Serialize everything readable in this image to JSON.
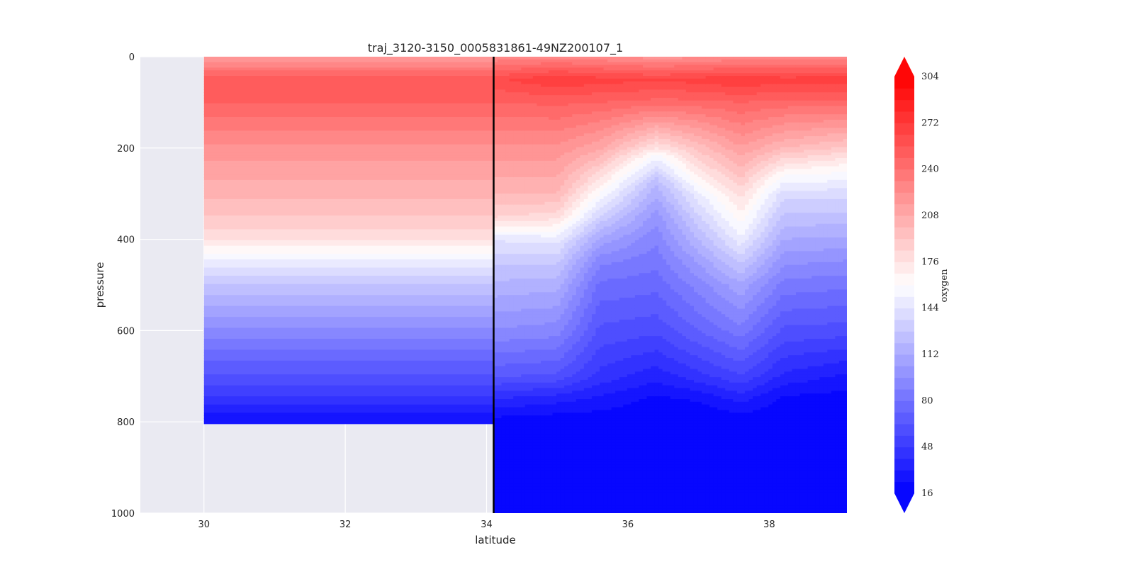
{
  "chart_data": {
    "type": "heatmap",
    "title": "traj_3120-3150_0005831861-49NZ200107_1",
    "xlabel": "latitude",
    "ylabel": "pressure",
    "xlim": [
      29.1,
      39.1
    ],
    "ylim": [
      1000,
      0
    ],
    "x_ticks": [
      30,
      32,
      34,
      36,
      38
    ],
    "y_ticks": [
      0,
      200,
      400,
      600,
      800,
      1000
    ],
    "grid": true,
    "background_color": "#eaeaf2",
    "colormap": "bwr",
    "colormap_low": "#0000ff",
    "colormap_mid": "#ffffff",
    "colormap_high": "#ff0000",
    "vertical_line": {
      "x": 34.1,
      "color": "#000000"
    },
    "colorbar": {
      "label": "oxygen",
      "min": 16,
      "max": 304,
      "level_step": 8,
      "tick_values": [
        16,
        48,
        80,
        112,
        144,
        176,
        208,
        240,
        272,
        304
      ],
      "extend": "both"
    },
    "oxygen_profile_left": {
      "x_range": [
        30,
        34.1
      ],
      "pressure": [
        0,
        50,
        100,
        150,
        200,
        250,
        300,
        350,
        400,
        450,
        500,
        550,
        600,
        650,
        700,
        750,
        800
      ],
      "oxygen": [
        215,
        255,
        248,
        235,
        222,
        212,
        202,
        192,
        176,
        150,
        128,
        110,
        95,
        78,
        62,
        45,
        25
      ]
    },
    "oxygen_profiles_right": [
      {
        "latitude": 34.1,
        "pressure": [
          0,
          50,
          100,
          200,
          300,
          350,
          400,
          450,
          500,
          600,
          700,
          750,
          800,
          1000
        ],
        "oxygen": [
          225,
          262,
          248,
          222,
          200,
          185,
          145,
          130,
          118,
          95,
          65,
          40,
          20,
          16
        ]
      },
      {
        "latitude": 35.0,
        "pressure": [
          0,
          50,
          100,
          200,
          300,
          350,
          400,
          450,
          500,
          600,
          700,
          750,
          800,
          1000
        ],
        "oxygen": [
          228,
          272,
          250,
          222,
          200,
          180,
          148,
          130,
          115,
          92,
          62,
          35,
          18,
          16
        ]
      },
      {
        "latitude": 35.6,
        "pressure": [
          0,
          50,
          100,
          200,
          280,
          320,
          400,
          450,
          500,
          600,
          700,
          750,
          800,
          1000
        ],
        "oxygen": [
          225,
          268,
          248,
          210,
          170,
          150,
          110,
          90,
          78,
          62,
          45,
          30,
          18,
          16
        ]
      },
      {
        "latitude": 36.4,
        "pressure": [
          0,
          50,
          100,
          200,
          220,
          280,
          350,
          400,
          500,
          600,
          700,
          750,
          800,
          1000
        ],
        "oxygen": [
          220,
          265,
          245,
          175,
          155,
          120,
          100,
          90,
          75,
          58,
          35,
          22,
          16,
          16
        ]
      },
      {
        "latitude": 37.0,
        "pressure": [
          0,
          50,
          100,
          200,
          260,
          300,
          400,
          450,
          500,
          600,
          700,
          750,
          800,
          1000
        ],
        "oxygen": [
          222,
          268,
          245,
          195,
          170,
          150,
          120,
          105,
          92,
          72,
          45,
          25,
          16,
          16
        ]
      },
      {
        "latitude": 37.6,
        "pressure": [
          0,
          50,
          100,
          200,
          300,
          350,
          400,
          450,
          500,
          600,
          700,
          750,
          800,
          1000
        ],
        "oxygen": [
          225,
          272,
          248,
          215,
          180,
          165,
          150,
          130,
          110,
          85,
          55,
          35,
          18,
          16
        ]
      },
      {
        "latitude": 38.2,
        "pressure": [
          0,
          50,
          100,
          200,
          260,
          300,
          400,
          450,
          500,
          600,
          700,
          750,
          800,
          1000
        ],
        "oxygen": [
          225,
          268,
          245,
          200,
          160,
          140,
          112,
          98,
          85,
          62,
          38,
          22,
          16,
          16
        ]
      },
      {
        "latitude": 39.1,
        "pressure": [
          0,
          50,
          100,
          200,
          240,
          300,
          400,
          450,
          500,
          600,
          700,
          750,
          800,
          1000
        ],
        "oxygen": [
          225,
          270,
          245,
          190,
          165,
          140,
          110,
          95,
          82,
          60,
          30,
          20,
          16,
          16
        ]
      }
    ]
  }
}
